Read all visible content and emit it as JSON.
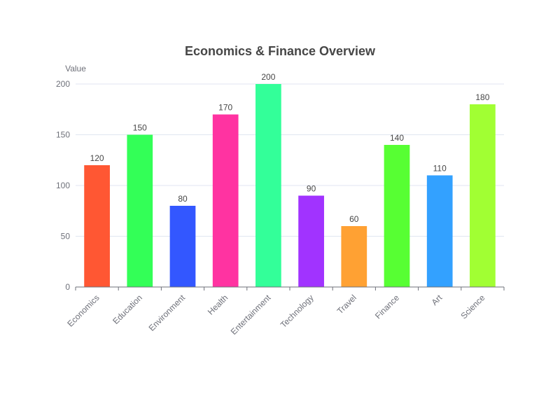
{
  "chart_data": {
    "type": "bar",
    "title": "Economics & Finance Overview",
    "ylabel": "Value",
    "xlabel": "",
    "ylim": [
      0,
      200
    ],
    "yticks": [
      0,
      50,
      100,
      150,
      200
    ],
    "grid": true,
    "categories": [
      "Economics",
      "Education",
      "Environment",
      "Health",
      "Entertainment",
      "Technology",
      "Travel",
      "Finance",
      "Art",
      "Science"
    ],
    "values": [
      120,
      150,
      80,
      170,
      200,
      90,
      60,
      140,
      110,
      180
    ],
    "colors": [
      "#ff5733",
      "#33ff57",
      "#3357ff",
      "#ff33a1",
      "#33ff99",
      "#a133ff",
      "#ffa133",
      "#57ff33",
      "#33a1ff",
      "#a1ff33"
    ]
  }
}
